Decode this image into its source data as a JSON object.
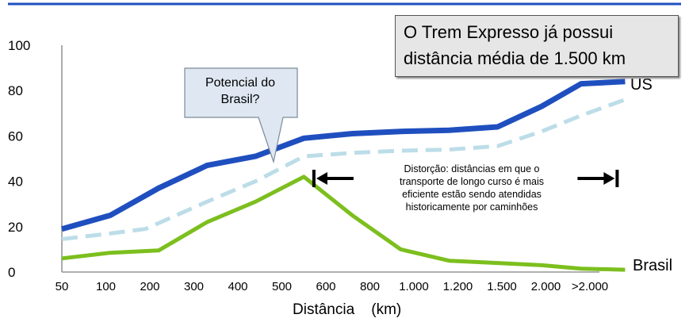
{
  "chart_data": {
    "type": "line",
    "categories": [
      "50",
      "100",
      "200",
      "300",
      "400",
      "500",
      "600",
      "800",
      "1.000",
      "1.200",
      "1.500",
      "2.000",
      ">2.000"
    ],
    "xlabel": "Distância    (km)",
    "ylabel": "",
    "ylim": [
      0,
      100
    ],
    "yticks": [
      0,
      20,
      40,
      60,
      80,
      100
    ],
    "grid": false,
    "series": [
      {
        "name": "US",
        "style": "solid",
        "color": "#1f4fbf",
        "points": [
          [
            0,
            19
          ],
          [
            1.1,
            25
          ],
          [
            2.2,
            37
          ],
          [
            3.3,
            47
          ],
          [
            4.4,
            51
          ],
          [
            5.5,
            59
          ],
          [
            6.6,
            61
          ],
          [
            7.7,
            62
          ],
          [
            8.8,
            62.5
          ],
          [
            9.9,
            64
          ],
          [
            10.9,
            73
          ],
          [
            11.8,
            83
          ],
          [
            12.8,
            84
          ]
        ]
      },
      {
        "name": "",
        "style": "dashed",
        "color": "#bcdde8",
        "points": [
          [
            0,
            14.5
          ],
          [
            1.1,
            17
          ],
          [
            1.9,
            19
          ],
          [
            3.3,
            31
          ],
          [
            4.4,
            40
          ],
          [
            5.5,
            51
          ],
          [
            6.6,
            52.5
          ],
          [
            7.7,
            53.5
          ],
          [
            8.8,
            54
          ],
          [
            9.9,
            55.5
          ],
          [
            10.9,
            62
          ],
          [
            11.8,
            69
          ],
          [
            12.8,
            76
          ]
        ]
      },
      {
        "name": "Brasil",
        "style": "solid",
        "color": "#7cbf1e",
        "points": [
          [
            0,
            6
          ],
          [
            1.1,
            8.5
          ],
          [
            2.2,
            9.5
          ],
          [
            3.3,
            22
          ],
          [
            4.4,
            31
          ],
          [
            5.5,
            42
          ],
          [
            6.6,
            25
          ],
          [
            7.7,
            10
          ],
          [
            8.8,
            5
          ],
          [
            9.9,
            4
          ],
          [
            10.9,
            3
          ],
          [
            11.8,
            1.5
          ],
          [
            12.8,
            1
          ]
        ]
      }
    ],
    "annotations": {
      "express": {
        "line1": "O Trem Expresso já possui",
        "line2": "distância média de 1.500 km"
      },
      "potential": {
        "line1": "Potencial do",
        "line2": "Brasil?"
      },
      "distortion": {
        "line1": "Distorção: distâncias em que o",
        "line2": "transporte de longo curso é mais",
        "line3": "eficiente estão sendo atendidas",
        "line4": "historicamente por caminhões",
        "range": [
          5.8,
          12.8
        ]
      }
    },
    "colors": {
      "top_rule": "#1f4fbf",
      "axis": "#808080",
      "callout_fill": "#e6e6e6",
      "potential_fill": "#dfe8f2"
    }
  }
}
